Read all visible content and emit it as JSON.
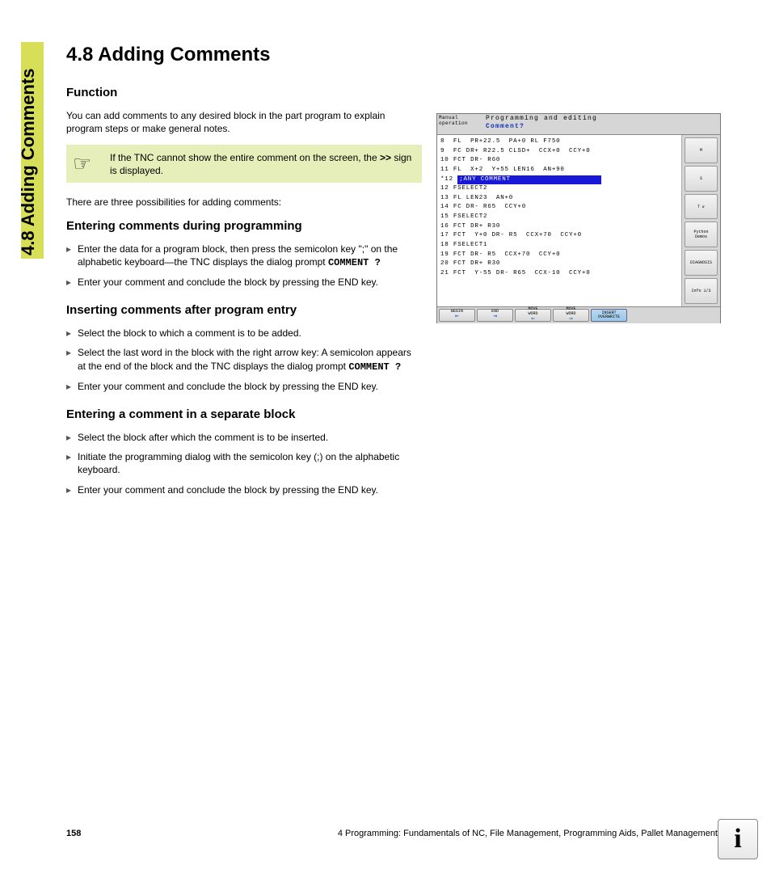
{
  "side_title": "4.8 Adding Comments",
  "heading": "4.8  Adding Comments",
  "section1": {
    "title": "Function",
    "para1": "You can add comments to any desired block in the part program to explain program steps or make general notes.",
    "note_pre": "If the TNC cannot show the entire comment on the screen, the ",
    "note_bold": ">>",
    "note_post": " sign is displayed.",
    "para2": "There are three possibilities for adding comments:"
  },
  "section2": {
    "title": "Entering comments during programming",
    "items": [
      {
        "pre": "Enter the data for a program block, then press the semicolon key \";\" on the alphabetic keyboard—the TNC displays the dialog prompt ",
        "mono": "COMMENT ?"
      },
      {
        "pre": "Enter your comment and conclude the block by pressing the END key."
      }
    ]
  },
  "section3": {
    "title": "Inserting comments after program entry",
    "items": [
      {
        "pre": "Select the block to which a comment is to be added."
      },
      {
        "pre": "Select the last word in the block with the right arrow key: A semicolon appears at the end of the block and the TNC displays the dialog prompt ",
        "mono": "COMMENT ?"
      },
      {
        "pre": "Enter your comment and conclude the block by pressing the END key."
      }
    ]
  },
  "section4": {
    "title": "Entering a comment in a separate block",
    "items": [
      {
        "pre": "Select the block after which the comment is to be inserted."
      },
      {
        "pre": "Initiate the programming dialog with the semicolon key (;) on the alphabetic keyboard."
      },
      {
        "pre": "Enter your comment and conclude the block by pressing the END key."
      }
    ]
  },
  "screenshot": {
    "mode": "Manual\noperation",
    "title1": "Programming and editing",
    "title2": "Comment?",
    "lines": [
      "8  FL  PR+22.5  PA+0 RL F750",
      "9  FC DR+ R22.5 CLSD+  CCX+0  CCY+0",
      "10 FCT DR- R60",
      "11 FL  X+2  Y+55 LEN16  AN+90"
    ],
    "hl_pre": "*12 ",
    "hl_text": ";ANY COMMENT",
    "lines2": [
      "12 FSELECT2",
      "13 FL LEN23  AN+0",
      "14 FC DR- R65  CCY+0",
      "15 FSELECT2",
      "16 FCT DR+ R30",
      "17 FCT  Y+0 DR- R5  CCX+70  CCY+0",
      "18 FSELECT1",
      "19 FCT DR- R5  CCX+70  CCY+0",
      "20 FCT DR+ R30",
      "21 FCT  Y-55 DR- R65  CCX-10  CCY+0"
    ],
    "side_buttons": [
      "M",
      "S",
      "T ⇵",
      "Python\nDemos",
      "DIAGNOSIS",
      "Info 1/3"
    ],
    "footer_buttons": [
      {
        "label": "BEGIN",
        "arrow": "⇤"
      },
      {
        "label": "END",
        "arrow": "⇥"
      },
      {
        "label": "MOVE\nWORD",
        "arrow": "⇐"
      },
      {
        "label": "MOVE\nWORD",
        "arrow": "⇒"
      },
      {
        "label": "INSERT\nOVERWRITE",
        "selected": true
      }
    ]
  },
  "footer": {
    "page_num": "158",
    "chapter": "4 Programming: Fundamentals of NC, File Management, Programming Aids, Pallet Management"
  },
  "info_glyph": "i"
}
